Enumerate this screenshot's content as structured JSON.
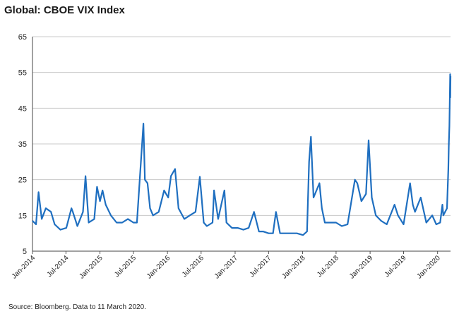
{
  "header": {
    "title": "Global: CBOE VIX Index"
  },
  "footer": {
    "source": "Source: Bloomberg. Data to 11 March 2020."
  },
  "chart_data": {
    "type": "line",
    "title": "Global: CBOE VIX Index",
    "xlabel": "",
    "ylabel": "",
    "ylim": [
      5,
      65
    ],
    "y_ticks": [
      5,
      15,
      25,
      35,
      45,
      55,
      65
    ],
    "x_ticks": [
      "Jan-2014",
      "Jul-2014",
      "Jan-2015",
      "Jul-2015",
      "Jan-2016",
      "Jul-2016",
      "Jan-2017",
      "Jul-2017",
      "Jan-2018",
      "Jul-2018",
      "Jan-2019",
      "Jul-2019",
      "Jan-2020"
    ],
    "xlim": [
      "2014-01-01",
      "2020-03-11"
    ],
    "grid": true,
    "line_color": "#1f6fc0",
    "series": [
      {
        "x": [
          "2014-01-01",
          "2014-01-20",
          "2014-02-03",
          "2014-02-20",
          "2014-03-14",
          "2014-04-11",
          "2014-05-01",
          "2014-06-01",
          "2014-07-03",
          "2014-07-31",
          "2014-08-07",
          "2014-09-01",
          "2014-10-01",
          "2014-10-15",
          "2014-11-01",
          "2014-12-01",
          "2014-12-16",
          "2015-01-01",
          "2015-01-15",
          "2015-02-01",
          "2015-03-01",
          "2015-04-01",
          "2015-05-01",
          "2015-06-01",
          "2015-07-01",
          "2015-07-20",
          "2015-08-24",
          "2015-09-01",
          "2015-09-15",
          "2015-09-29",
          "2015-10-15",
          "2015-11-15",
          "2015-12-14",
          "2016-01-05",
          "2016-01-20",
          "2016-02-11",
          "2016-03-01",
          "2016-04-01",
          "2016-05-01",
          "2016-06-01",
          "2016-06-24",
          "2016-07-15",
          "2016-08-01",
          "2016-09-01",
          "2016-09-09",
          "2016-10-01",
          "2016-11-04",
          "2016-11-15",
          "2016-12-15",
          "2017-01-15",
          "2017-02-15",
          "2017-03-15",
          "2017-04-13",
          "2017-05-10",
          "2017-06-01",
          "2017-07-01",
          "2017-07-25",
          "2017-08-10",
          "2017-09-01",
          "2017-10-01",
          "2017-11-01",
          "2017-12-01",
          "2018-01-03",
          "2018-01-25",
          "2018-02-05",
          "2018-02-15",
          "2018-03-01",
          "2018-04-02",
          "2018-04-15",
          "2018-05-01",
          "2018-06-01",
          "2018-07-01",
          "2018-08-01",
          "2018-09-01",
          "2018-10-11",
          "2018-10-24",
          "2018-11-15",
          "2018-12-10",
          "2018-12-24",
          "2019-01-10",
          "2019-02-01",
          "2019-03-01",
          "2019-04-01",
          "2019-05-13",
          "2019-06-01",
          "2019-07-01",
          "2019-08-05",
          "2019-08-20",
          "2019-09-01",
          "2019-10-02",
          "2019-11-01",
          "2019-12-03",
          "2019-12-25",
          "2020-01-15",
          "2020-01-27",
          "2020-02-01",
          "2020-02-21",
          "2020-02-28",
          "2020-03-02",
          "2020-03-05",
          "2020-03-09",
          "2020-03-10",
          "2020-03-11"
        ],
        "y": [
          13.5,
          12.5,
          21.5,
          14,
          17,
          16,
          12.5,
          11,
          11.5,
          17,
          16,
          12,
          16,
          26,
          13,
          14,
          23,
          19,
          22,
          18,
          15,
          13,
          13,
          14,
          13,
          13,
          40.7,
          25,
          24,
          17,
          15,
          16,
          22,
          20,
          26,
          28,
          17,
          14,
          15,
          16,
          25.8,
          13,
          12,
          13,
          22,
          14,
          22,
          13,
          11.5,
          11.5,
          11,
          11.5,
          16,
          10.5,
          10.5,
          10,
          10,
          16,
          10,
          10,
          10,
          10,
          9.5,
          10.5,
          30,
          37,
          20,
          24,
          17,
          13,
          13,
          13,
          12,
          12.5,
          25,
          24,
          19,
          21,
          36,
          20,
          15,
          13.5,
          12.5,
          18,
          15,
          12.5,
          24,
          18,
          16,
          20,
          13,
          15,
          12.5,
          13,
          18,
          15,
          17,
          28,
          35,
          40,
          54.5,
          48,
          54
        ]
      }
    ]
  }
}
